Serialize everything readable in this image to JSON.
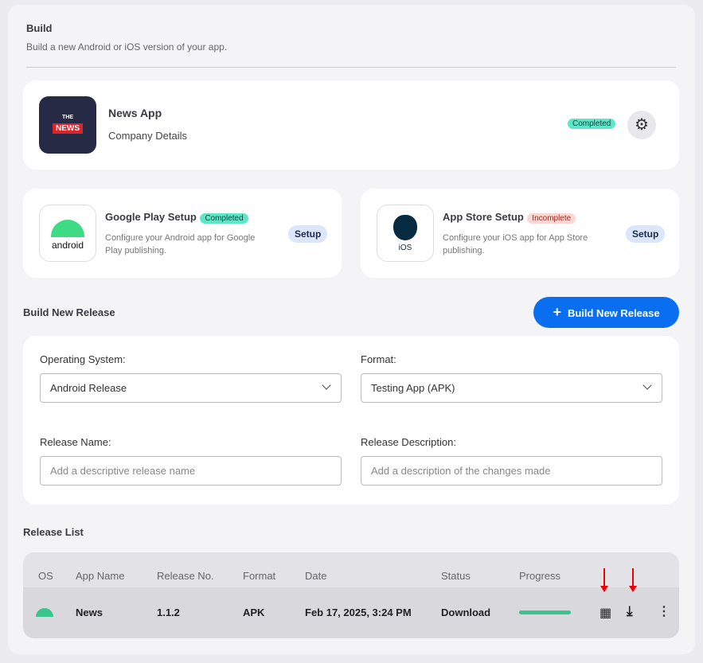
{
  "header": {
    "title": "Build",
    "subtitle": "Build a new Android or iOS version of your app."
  },
  "app": {
    "name": "News App",
    "details": "Company Details",
    "status": "Completed",
    "logo_text_top": "THE",
    "logo_text_main": "NEWS"
  },
  "google_play": {
    "title": "Google Play Setup",
    "status": "Completed",
    "description": "Configure your Android app for Google Play publishing.",
    "button": "Setup",
    "icon_label": "android"
  },
  "app_store": {
    "title": "App Store Setup",
    "status": "Incomplete",
    "description": "Configure your iOS app for App Store publishing.",
    "button": "Setup",
    "icon_label": "iOS"
  },
  "build": {
    "title": "Build New Release",
    "button": "Build New Release",
    "os_label": "Operating System:",
    "os_value": "Android Release",
    "format_label": "Format:",
    "format_value": "Testing App (APK)",
    "name_label": "Release Name:",
    "name_placeholder": "Add a descriptive release name",
    "desc_label": "Release Description:",
    "desc_placeholder": "Add a description of the changes made"
  },
  "release_list": {
    "title": "Release List",
    "columns": [
      "OS",
      "App Name",
      "Release No.",
      "Format",
      "Date",
      "Status",
      "Progress"
    ],
    "rows": [
      {
        "os": "android",
        "app_name": "News",
        "release_no": "1.1.2",
        "format": "APK",
        "date": "Feb 17, 2025, 3:24 PM",
        "status": "Download",
        "progress": 100
      }
    ]
  },
  "colors": {
    "accent": "#0a6ef0",
    "success": "#3cc48f",
    "completed_badge": "#5ce8c8",
    "incomplete_badge": "#fbd6d3"
  }
}
